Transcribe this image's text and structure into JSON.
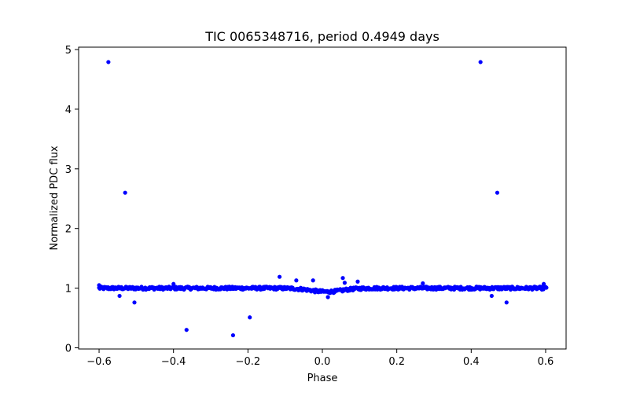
{
  "chart_data": {
    "type": "scatter",
    "title": "TIC 0065348716, period 0.4949 days",
    "xlabel": "Phase",
    "ylabel": "Normalized PDC flux",
    "xlim": [
      -0.655,
      0.655
    ],
    "ylim": [
      -0.02,
      5.04
    ],
    "xticks": [
      -0.6,
      -0.4,
      -0.2,
      0.0,
      0.2,
      0.4,
      0.6
    ],
    "xtick_labels": [
      "−0.6",
      "−0.4",
      "−0.2",
      "0.0",
      "0.2",
      "0.4",
      "0.6"
    ],
    "yticks": [
      0,
      1,
      2,
      3,
      4,
      5
    ],
    "ytick_labels": [
      "0",
      "1",
      "2",
      "3",
      "4",
      "5"
    ],
    "grid": false,
    "marker_color": "#0000ff",
    "baseline": {
      "x_start": -0.6,
      "x_end": 0.6,
      "step": 0.004,
      "level": 1.0,
      "dip": {
        "center": 0.01,
        "width": 0.06,
        "depth": 0.06
      }
    },
    "outliers": [
      {
        "x": -0.575,
        "y": 4.79
      },
      {
        "x": 0.425,
        "y": 4.79
      },
      {
        "x": -0.53,
        "y": 2.6
      },
      {
        "x": 0.47,
        "y": 2.6
      },
      {
        "x": -0.365,
        "y": 0.3
      },
      {
        "x": -0.24,
        "y": 0.21
      },
      {
        "x": -0.195,
        "y": 0.51
      },
      {
        "x": -0.505,
        "y": 0.76
      },
      {
        "x": 0.495,
        "y": 0.76
      },
      {
        "x": -0.545,
        "y": 0.87
      },
      {
        "x": 0.455,
        "y": 0.87
      },
      {
        "x": -0.115,
        "y": 1.19
      },
      {
        "x": -0.07,
        "y": 1.13
      },
      {
        "x": -0.025,
        "y": 1.13
      },
      {
        "x": 0.055,
        "y": 1.17
      },
      {
        "x": 0.06,
        "y": 1.09
      },
      {
        "x": 0.095,
        "y": 1.11
      },
      {
        "x": 0.015,
        "y": 0.85
      },
      {
        "x": -0.4,
        "y": 1.07
      },
      {
        "x": 0.27,
        "y": 1.08
      },
      {
        "x": 0.595,
        "y": 1.07
      },
      {
        "x": -0.6,
        "y": 1.05
      }
    ]
  }
}
